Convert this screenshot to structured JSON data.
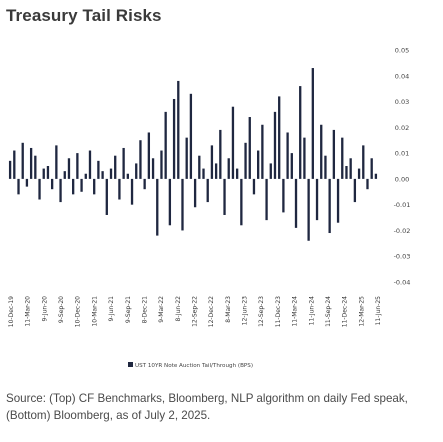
{
  "header": {
    "title": "Treasury Tail Risks"
  },
  "source": {
    "text": "Source: (Top) CF Benchmarks, Bloomberg, NLP algorithm on daily Fed speak, (Bottom) Bloomberg, as of July 2, 2025."
  },
  "colors": {
    "bars": "#1f2740",
    "text": "#444444"
  },
  "chart_data": {
    "type": "bar",
    "title": "Treasury Tail Risks",
    "legend": "UST 10YR Note Auction Tail/Through (BPS)",
    "legend_position": "bottom-left",
    "y_axis_position": "right",
    "ylim": [
      -0.04,
      0.05
    ],
    "yticks": [
      0.05,
      0.04,
      0.03,
      0.02,
      0.01,
      0.0,
      -0.01,
      -0.02,
      -0.03,
      -0.04
    ],
    "ytick_labels": [
      "0.05",
      "0.04",
      "0.03",
      "0.02",
      "0.01",
      "0.00",
      "-0.01",
      "-0.02",
      "-0.03",
      "-0.04"
    ],
    "grid": false,
    "xtick_labels": [
      "10-Dec-19",
      "11-Mar-20",
      "9-Jun-20",
      "9-Sep-20",
      "10-Dec-20",
      "10-Mar-21",
      "9-Jun-21",
      "9-Sep-21",
      "8-Dec-21",
      "9-Mar-22",
      "8-Jun-22",
      "12-Sep-22",
      "12-Dec-22",
      "8-Mar-23",
      "12-Jun-23",
      "12-Sep-23",
      "11-Dec-23",
      "11-Mar-24",
      "11-Jun-24",
      "11-Sep-24",
      "11-Dec-24",
      "12-Mar-25",
      "11-Jun-25"
    ],
    "values": [
      0.007,
      0.011,
      -0.006,
      0.014,
      -0.003,
      0.012,
      0.009,
      -0.008,
      0.004,
      0.005,
      -0.004,
      0.013,
      -0.009,
      0.003,
      0.008,
      -0.006,
      0.01,
      -0.005,
      0.002,
      0.011,
      -0.006,
      0.007,
      0.003,
      -0.014,
      0.004,
      0.009,
      -0.008,
      0.012,
      0.002,
      -0.01,
      0.006,
      0.015,
      -0.004,
      0.018,
      0.008,
      -0.022,
      0.011,
      0.026,
      -0.018,
      0.031,
      0.038,
      -0.02,
      0.016,
      0.033,
      -0.011,
      0.009,
      0.004,
      -0.009,
      0.013,
      0.006,
      0.019,
      -0.014,
      0.008,
      0.028,
      0.004,
      -0.018,
      0.014,
      0.024,
      -0.006,
      0.011,
      0.021,
      -0.016,
      0.006,
      0.026,
      0.032,
      -0.013,
      0.018,
      0.01,
      -0.019,
      0.036,
      0.016,
      -0.024,
      0.043,
      -0.016,
      0.021,
      0.009,
      -0.021,
      0.019,
      -0.017,
      0.016,
      0.005,
      0.008,
      -0.009,
      0.004,
      0.013,
      -0.004,
      0.008,
      0.002
    ]
  }
}
